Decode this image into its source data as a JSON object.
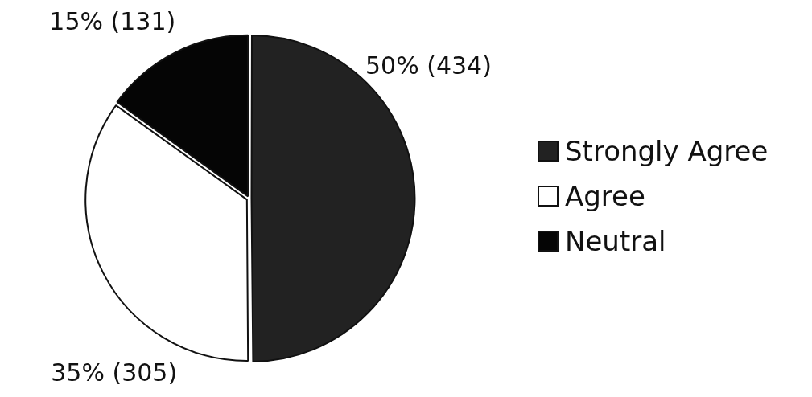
{
  "chart_data": {
    "type": "pie",
    "categories": [
      "Strongly Agree",
      "Agree",
      "Neutral"
    ],
    "values": [
      434,
      305,
      131
    ],
    "colors": [
      "#222222",
      "#ffffff",
      "#050505"
    ],
    "value_labels": [
      "50% (434)",
      "35% (305)",
      "15% (131)"
    ],
    "legend": "right"
  }
}
